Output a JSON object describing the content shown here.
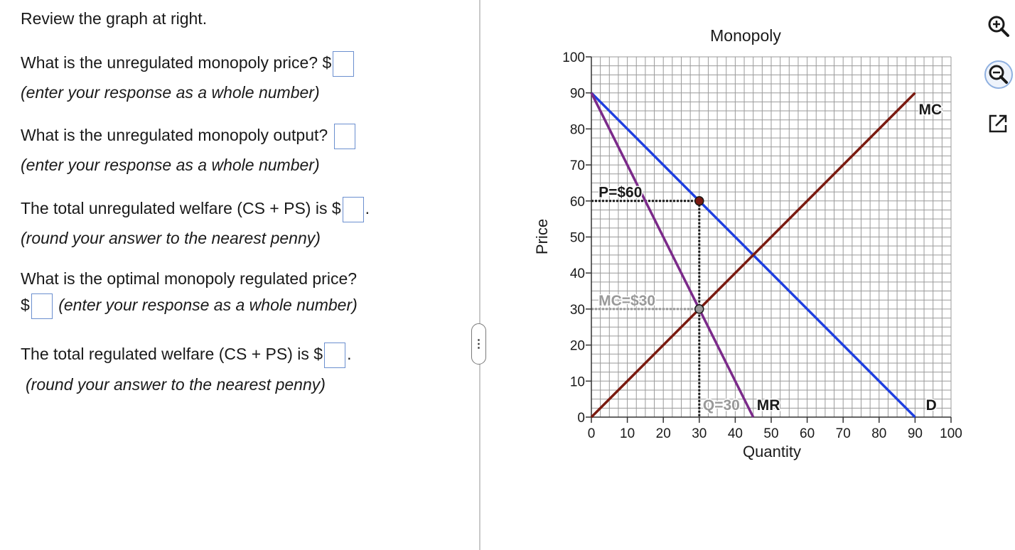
{
  "questions": {
    "intro": "Review the graph at right.",
    "q1_text": "What is the unregulated monopoly price? $",
    "q1_note": "(enter your response as a whole number)",
    "q2_text": "What is the unregulated monopoly output?",
    "q2_note": "(enter your response as a whole number)",
    "q3_text": "The total unregulated welfare (CS + PS) is $",
    "q3_after": ".",
    "q3_note": "(round your answer to the nearest penny)",
    "q4_text": "What is the optimal monopoly regulated price?",
    "q4_prefix": "$",
    "q4_note": "(enter your response as a whole number)",
    "q5_text": "The total regulated welfare (CS + PS) is $",
    "q5_after": ".",
    "q5_note": "(round your answer to the nearest penny)"
  },
  "answers": {
    "q1": "",
    "q2": "",
    "q3": "",
    "q4": "",
    "q5": ""
  },
  "splitter": {
    "handle_label": "⋮"
  },
  "tools": {
    "zoom_in": "zoom-in-icon",
    "zoom_out": "zoom-out-icon",
    "popout": "popout-icon"
  },
  "chart_data": {
    "type": "line",
    "title": "Monopoly",
    "xlabel": "Quantity",
    "ylabel": "Price",
    "xlim": [
      0,
      100
    ],
    "ylim": [
      0,
      100
    ],
    "grid": true,
    "xticks": [
      0,
      10,
      20,
      30,
      40,
      50,
      60,
      70,
      80,
      90,
      100
    ],
    "yticks": [
      0,
      10,
      20,
      30,
      40,
      50,
      60,
      70,
      80,
      90,
      100
    ],
    "series": [
      {
        "name": "D",
        "color": "#1f3fe0",
        "x": [
          0,
          90
        ],
        "y": [
          90,
          0
        ]
      },
      {
        "name": "MR",
        "color": "#7b2a8a",
        "x": [
          0,
          45
        ],
        "y": [
          90,
          0
        ]
      },
      {
        "name": "MC",
        "color": "#7a1a10",
        "x": [
          0,
          90
        ],
        "y": [
          0,
          90
        ]
      }
    ],
    "points": [
      {
        "x": 30,
        "y": 60,
        "color": "#7a1a10"
      },
      {
        "x": 30,
        "y": 30,
        "color": "#999999"
      }
    ],
    "annotations": [
      {
        "text": "P=$60",
        "x": 2,
        "y": 61,
        "color": "#1a1a1a"
      },
      {
        "text": "MC=$30",
        "x": 2,
        "y": 31,
        "color": "#999999"
      },
      {
        "text": "Q=30",
        "x": 31,
        "y": 2,
        "color": "#999999"
      },
      {
        "text": "MR",
        "x": 46,
        "y": 2,
        "color": "#1a1a1a"
      },
      {
        "text": "MC",
        "x": 91,
        "y": 84,
        "color": "#1a1a1a"
      },
      {
        "text": "D",
        "x": 93,
        "y": 2,
        "color": "#1a1a1a"
      }
    ],
    "colors": {
      "grid": "#9a9a9a",
      "axis": "#333333",
      "dotted": "#1a1a1a",
      "dotted_light": "#999999"
    }
  }
}
